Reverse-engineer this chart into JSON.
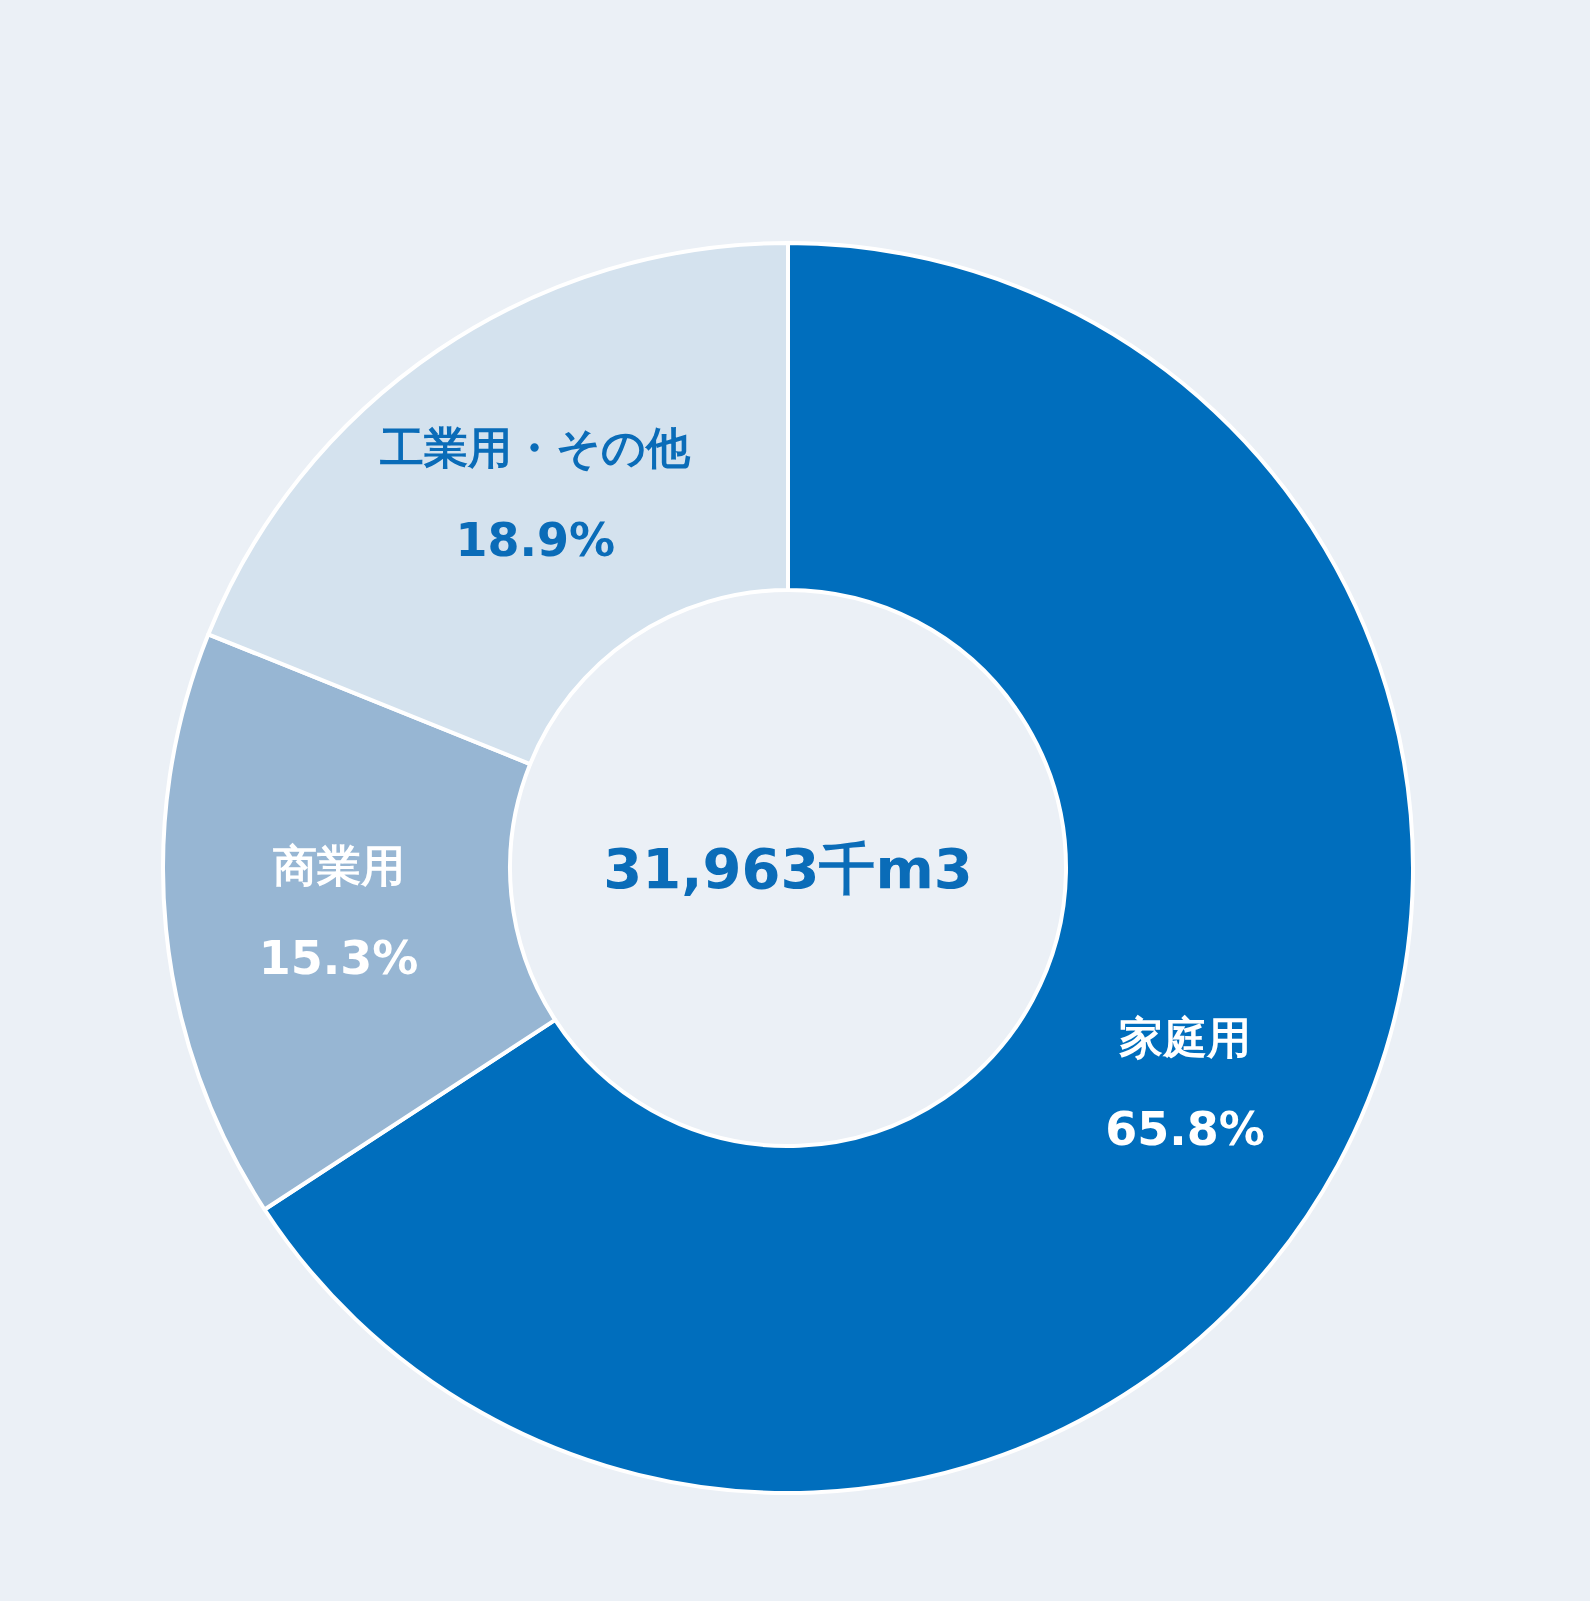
{
  "chart_data": {
    "type": "donut",
    "categories": [
      "家庭用",
      "商業用",
      "工業用・その他"
    ],
    "values": [
      65.8,
      15.3,
      18.9
    ],
    "colors": [
      "#006ebd",
      "#97b6d3",
      "#d4e2ee"
    ],
    "value_labels": [
      "65.8%",
      "15.3%",
      "18.9%"
    ],
    "annotations": [
      "31,963千m3"
    ]
  }
}
